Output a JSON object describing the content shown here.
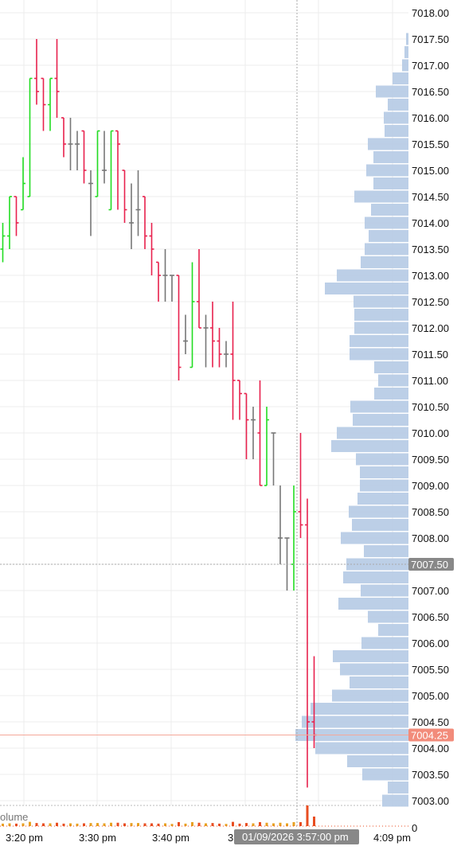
{
  "chart_data": {
    "type": "ohlc",
    "y_axis_range": [
      7002.875,
      7018.125
    ],
    "y_axis_position": "right",
    "y_ticks": [
      "7003.00",
      "7003.50",
      "7004.00",
      "7004.50",
      "7005.00",
      "7005.50",
      "7006.00",
      "7006.50",
      "7007.00",
      "7007.50",
      "7008.00",
      "7008.50",
      "7009.00",
      "7009.50",
      "7010.00",
      "7010.50",
      "7011.00",
      "7011.50",
      "7012.00",
      "7012.50",
      "7013.00",
      "7013.50",
      "7014.00",
      "7014.50",
      "7015.00",
      "7015.50",
      "7016.00",
      "7016.50",
      "7017.00",
      "7017.50",
      "7018.00"
    ],
    "x_labels": [
      "3:20 pm",
      "3:30 pm",
      "3:40 pm",
      "3:",
      "4:09 pm"
    ],
    "crosshair": {
      "time_label": "01/09/2026 3:57:00 pm",
      "price_label": "7007.50",
      "price": 7007.5,
      "minute": 3
    },
    "last_price": {
      "label": "7004.25",
      "value": 7004.25,
      "color": "#f5a89a"
    },
    "volume_label": "olume",
    "volume_axis_zero": "0",
    "colors": {
      "up": "#22dd22",
      "down": "#e8214d",
      "flat": "#777777",
      "profile": "#b8cce6",
      "crosshair_badge": "#888888",
      "last_badge": "#f28b7a",
      "grid": "#ececec"
    },
    "bars": [
      {
        "o": 7013.5,
        "h": 7014.0,
        "l": 7013.25,
        "c": 7013.75
      },
      {
        "o": 7013.75,
        "h": 7014.5,
        "l": 7013.5,
        "c": 7014.5
      },
      {
        "o": 7014.5,
        "h": 7014.5,
        "l": 7013.75,
        "c": 7014.0
      },
      {
        "o": 7014.25,
        "h": 7015.25,
        "l": 7014.25,
        "c": 7014.75
      },
      {
        "o": 7014.5,
        "h": 7016.75,
        "l": 7014.5,
        "c": 7016.75
      },
      {
        "o": 7016.75,
        "h": 7017.5,
        "l": 7016.25,
        "c": 7016.5
      },
      {
        "o": 7016.75,
        "h": 7016.75,
        "l": 7015.75,
        "c": 7016.25
      },
      {
        "o": 7016.25,
        "h": 7016.75,
        "l": 7015.75,
        "c": 7016.75
      },
      {
        "o": 7016.75,
        "h": 7017.5,
        "l": 7016.0,
        "c": 7016.5
      },
      {
        "o": 7016.0,
        "h": 7016.0,
        "l": 7015.25,
        "c": 7015.5
      },
      {
        "o": 7015.5,
        "h": 7016.0,
        "l": 7015.0,
        "c": 7015.5
      },
      {
        "o": 7015.5,
        "h": 7015.75,
        "l": 7015.0,
        "c": 7015.5
      },
      {
        "o": 7015.75,
        "h": 7015.75,
        "l": 7014.75,
        "c": 7015.0
      },
      {
        "o": 7014.75,
        "h": 7015.0,
        "l": 7013.75,
        "c": 7014.75
      },
      {
        "o": 7014.5,
        "h": 7015.75,
        "l": 7014.5,
        "c": 7015.75
      },
      {
        "o": 7015.0,
        "h": 7015.75,
        "l": 7014.75,
        "c": 7015.0
      },
      {
        "o": 7014.25,
        "h": 7015.75,
        "l": 7014.25,
        "c": 7015.75
      },
      {
        "o": 7015.75,
        "h": 7015.75,
        "l": 7014.25,
        "c": 7015.5
      },
      {
        "o": 7015.0,
        "h": 7015.0,
        "l": 7014.0,
        "c": 7014.25
      },
      {
        "o": 7014.0,
        "h": 7014.75,
        "l": 7013.5,
        "c": 7014.0
      },
      {
        "o": 7014.25,
        "h": 7015.0,
        "l": 7013.75,
        "c": 7014.25
      },
      {
        "o": 7014.5,
        "h": 7014.5,
        "l": 7013.5,
        "c": 7013.75
      },
      {
        "o": 7013.75,
        "h": 7014.0,
        "l": 7013.0,
        "c": 7013.5
      },
      {
        "o": 7013.25,
        "h": 7013.25,
        "l": 7012.5,
        "c": 7013.0
      },
      {
        "o": 7013.0,
        "h": 7013.5,
        "l": 7012.5,
        "c": 7013.0
      },
      {
        "o": 7013.0,
        "h": 7013.0,
        "l": 7012.5,
        "c": 7013.0
      },
      {
        "o": 7013.0,
        "h": 7013.0,
        "l": 7011.0,
        "c": 7011.25
      },
      {
        "o": 7011.75,
        "h": 7012.25,
        "l": 7011.5,
        "c": 7011.75
      },
      {
        "o": 7011.25,
        "h": 7013.25,
        "l": 7011.25,
        "c": 7012.5
      },
      {
        "o": 7012.5,
        "h": 7013.5,
        "l": 7012.0,
        "c": 7012.0
      },
      {
        "o": 7012.0,
        "h": 7012.25,
        "l": 7011.25,
        "c": 7012.0
      },
      {
        "o": 7012.0,
        "h": 7012.5,
        "l": 7011.25,
        "c": 7011.75
      },
      {
        "o": 7011.75,
        "h": 7012.0,
        "l": 7011.25,
        "c": 7011.5
      },
      {
        "o": 7011.5,
        "h": 7011.75,
        "l": 7011.25,
        "c": 7011.5
      },
      {
        "o": 7011.5,
        "h": 7012.5,
        "l": 7010.25,
        "c": 7011.0
      },
      {
        "o": 7011.0,
        "h": 7011.0,
        "l": 7010.25,
        "c": 7010.75
      },
      {
        "o": 7010.75,
        "h": 7010.75,
        "l": 7009.5,
        "c": 7010.25
      },
      {
        "o": 7010.25,
        "h": 7010.5,
        "l": 7009.5,
        "c": 7010.25
      },
      {
        "o": 7010.0,
        "h": 7011.0,
        "l": 7009.0,
        "c": 7009.0
      },
      {
        "o": 7009.0,
        "h": 7010.5,
        "l": 7009.0,
        "c": 7010.25
      },
      {
        "o": 7010.0,
        "h": 7010.0,
        "l": 7009.0,
        "c": 7010.0
      },
      {
        "o": 7008.0,
        "h": 7009.0,
        "l": 7007.5,
        "c": 7008.0
      },
      {
        "o": 7008.0,
        "h": 7008.0,
        "l": 7007.0,
        "c": 7008.0
      },
      {
        "o": 7007.5,
        "h": 7009.0,
        "l": 7007.0,
        "c": 7008.5
      },
      {
        "o": 7008.5,
        "h": 7010.0,
        "l": 7008.0,
        "c": 7008.25
      },
      {
        "o": 7008.25,
        "h": 7008.75,
        "l": 7003.25,
        "c": 7004.5
      },
      {
        "o": 7004.5,
        "h": 7005.75,
        "l": 7004.0,
        "c": 7004.25
      }
    ],
    "volume_profile": [
      {
        "p": 7003.0,
        "v": 33
      },
      {
        "p": 7003.25,
        "v": 26
      },
      {
        "p": 7003.5,
        "v": 58
      },
      {
        "p": 7003.75,
        "v": 77
      },
      {
        "p": 7004.0,
        "v": 117
      },
      {
        "p": 7004.25,
        "v": 142
      },
      {
        "p": 7004.5,
        "v": 134
      },
      {
        "p": 7004.75,
        "v": 123
      },
      {
        "p": 7005.0,
        "v": 96
      },
      {
        "p": 7005.25,
        "v": 74
      },
      {
        "p": 7005.5,
        "v": 86
      },
      {
        "p": 7005.75,
        "v": 95
      },
      {
        "p": 7006.0,
        "v": 59
      },
      {
        "p": 7006.25,
        "v": 38
      },
      {
        "p": 7006.5,
        "v": 51
      },
      {
        "p": 7006.75,
        "v": 88
      },
      {
        "p": 7007.0,
        "v": 60
      },
      {
        "p": 7007.25,
        "v": 82
      },
      {
        "p": 7007.5,
        "v": 78
      },
      {
        "p": 7007.75,
        "v": 56
      },
      {
        "p": 7008.0,
        "v": 85
      },
      {
        "p": 7008.25,
        "v": 71
      },
      {
        "p": 7008.5,
        "v": 75
      },
      {
        "p": 7008.75,
        "v": 64
      },
      {
        "p": 7009.0,
        "v": 61
      },
      {
        "p": 7009.25,
        "v": 61
      },
      {
        "p": 7009.5,
        "v": 66
      },
      {
        "p": 7009.75,
        "v": 97
      },
      {
        "p": 7010.0,
        "v": 90
      },
      {
        "p": 7010.25,
        "v": 70
      },
      {
        "p": 7010.5,
        "v": 73
      },
      {
        "p": 7010.75,
        "v": 43
      },
      {
        "p": 7011.0,
        "v": 38
      },
      {
        "p": 7011.25,
        "v": 43
      },
      {
        "p": 7011.5,
        "v": 74
      },
      {
        "p": 7011.75,
        "v": 74
      },
      {
        "p": 7012.0,
        "v": 68
      },
      {
        "p": 7012.25,
        "v": 68
      },
      {
        "p": 7012.5,
        "v": 69
      },
      {
        "p": 7012.75,
        "v": 105
      },
      {
        "p": 7013.0,
        "v": 90
      },
      {
        "p": 7013.25,
        "v": 60
      },
      {
        "p": 7013.5,
        "v": 55
      },
      {
        "p": 7013.75,
        "v": 50
      },
      {
        "p": 7014.0,
        "v": 55
      },
      {
        "p": 7014.25,
        "v": 47
      },
      {
        "p": 7014.5,
        "v": 68
      },
      {
        "p": 7014.75,
        "v": 44
      },
      {
        "p": 7015.0,
        "v": 53
      },
      {
        "p": 7015.25,
        "v": 44
      },
      {
        "p": 7015.5,
        "v": 51
      },
      {
        "p": 7015.75,
        "v": 30
      },
      {
        "p": 7016.0,
        "v": 31
      },
      {
        "p": 7016.25,
        "v": 26
      },
      {
        "p": 7016.5,
        "v": 41
      },
      {
        "p": 7016.75,
        "v": 20
      },
      {
        "p": 7017.0,
        "v": 8
      },
      {
        "p": 7017.25,
        "v": 5
      },
      {
        "p": 7017.5,
        "v": 3
      }
    ]
  }
}
